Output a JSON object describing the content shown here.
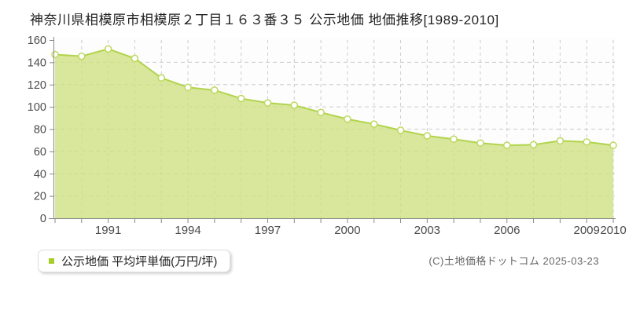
{
  "title": "神奈川県相模原市相模原２丁目１６３番３５ 公示地価 地価推移[1989-2010]",
  "legend": {
    "label": "公示地価 平均坪単価(万円/坪)",
    "marker_color": "#a6ce27"
  },
  "copyright": "(C)土地価格ドットコム 2025-03-23",
  "chart_data": {
    "type": "area",
    "title": "神奈川県相模原市相模原２丁目１６３番３５ 公示地価 地価推移[1989-2010]",
    "xlabel": "",
    "ylabel": "平均坪単価(万円/坪)",
    "x": [
      1989,
      1990,
      1991,
      1992,
      1993,
      1994,
      1995,
      1996,
      1997,
      1998,
      1999,
      2000,
      2001,
      2002,
      2003,
      2004,
      2005,
      2006,
      2007,
      2008,
      2009,
      2010
    ],
    "series": [
      {
        "name": "公示地価 平均坪単価(万円/坪)",
        "values": [
          147,
          145.5,
          152,
          143.5,
          126,
          117.5,
          115,
          107.5,
          103.5,
          101.5,
          95,
          89,
          84.5,
          79,
          74,
          71,
          67.5,
          65.5,
          66,
          69.5,
          68.5,
          65.5
        ]
      }
    ],
    "ylim": [
      0,
      160
    ],
    "ytick_step": 20,
    "ytick_labels": [
      "0",
      "20",
      "40",
      "60",
      "80",
      "100",
      "120",
      "140",
      "160"
    ],
    "xtick_labels": [
      "1991",
      "1994",
      "1997",
      "2000",
      "2003",
      "2006",
      "2009",
      "2010"
    ],
    "grid": true,
    "grid_style": "dashed",
    "legend_position": "bottom-left",
    "colors": {
      "area_fill": "#cde07f",
      "area_opacity": 0.78,
      "line": "#b2d44e",
      "marker_fill": "#ffffff",
      "marker_stroke": "#bcd95d",
      "grid": "#cccccc",
      "axis": "#888888",
      "tick_text": "#4a4a4a"
    }
  }
}
